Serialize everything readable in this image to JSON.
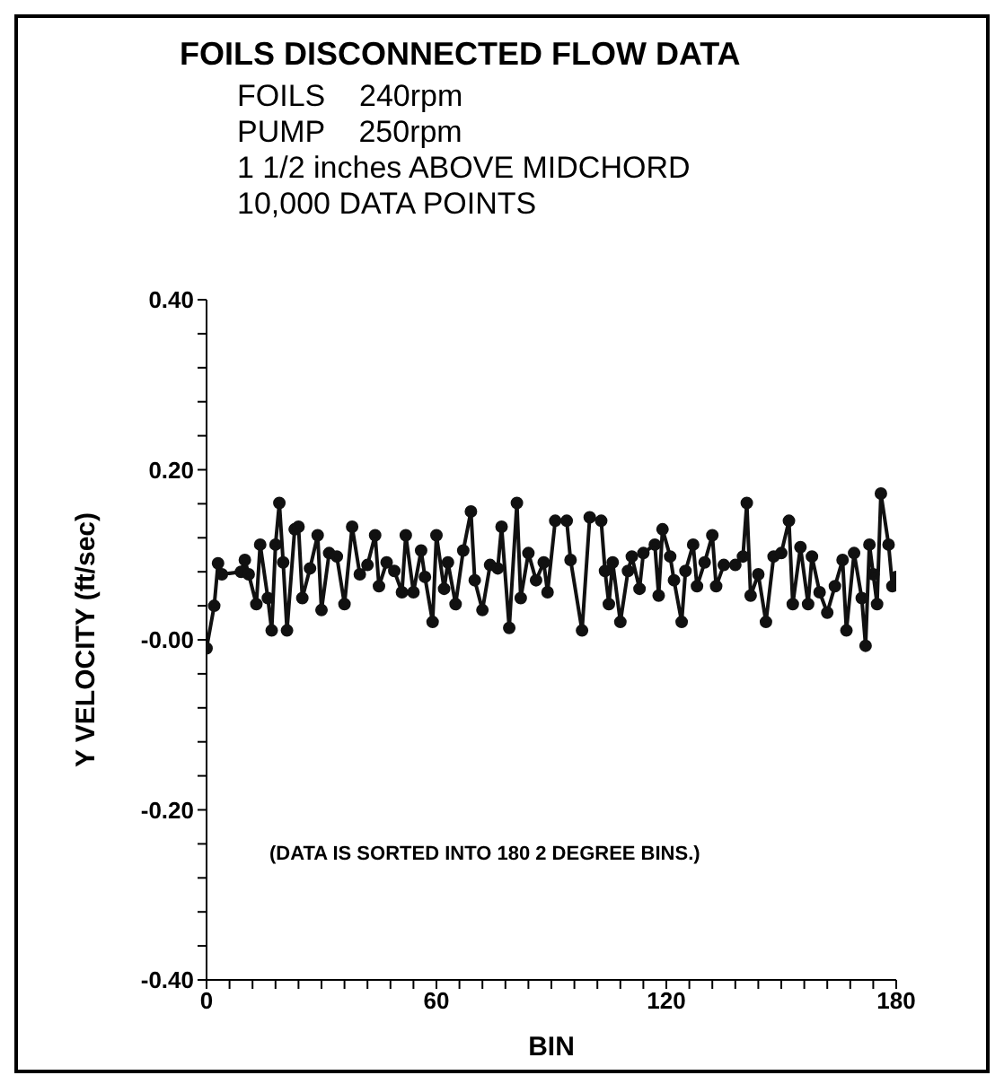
{
  "chart_data": {
    "type": "line",
    "title": "FOILS DISCONNECTED FLOW DATA",
    "subtitle": "FOILS    240rpm\nPUMP    250rpm\n1 1/2 inches ABOVE MIDCHORD\n10,000 DATA POINTS",
    "xlabel": "BIN",
    "ylabel": "Y VELOCITY (ft/sec)",
    "annotations": [
      "(DATA IS SORTED INTO 180 2 DEGREE BINS.)"
    ],
    "x": [
      0,
      2,
      3,
      4,
      9,
      10,
      11,
      13,
      14,
      16,
      17,
      18,
      19,
      20,
      21,
      23,
      24,
      25,
      27,
      29,
      30,
      32,
      34,
      36,
      38,
      40,
      42,
      44,
      45,
      47,
      49,
      51,
      52,
      54,
      56,
      57,
      59,
      60,
      62,
      63,
      65,
      67,
      69,
      70,
      72,
      74,
      76,
      77,
      79,
      81,
      82,
      84,
      86,
      88,
      89,
      91,
      94,
      95,
      98,
      100,
      103,
      104,
      105,
      106,
      108,
      110,
      111,
      113,
      114,
      117,
      118,
      119,
      121,
      122,
      124,
      125,
      127,
      128,
      130,
      132,
      133,
      135,
      138,
      140,
      141,
      142,
      144,
      146,
      148,
      150,
      152,
      153,
      155,
      157,
      158,
      160,
      162,
      164,
      166,
      167,
      169,
      171,
      172,
      173,
      174,
      175,
      176,
      178,
      179,
      180
    ],
    "series": [
      {
        "color": "#111111",
        "values": [
          -0.01,
          0.04,
          0.09,
          0.077,
          0.08,
          0.094,
          0.077,
          0.042,
          0.112,
          0.049,
          0.011,
          0.112,
          0.161,
          0.091,
          0.011,
          0.13,
          0.133,
          0.049,
          0.084,
          0.123,
          0.035,
          0.102,
          0.098,
          0.042,
          0.133,
          0.077,
          0.088,
          0.123,
          0.063,
          0.091,
          0.081,
          0.056,
          0.123,
          0.056,
          0.105,
          0.074,
          0.021,
          0.123,
          0.06,
          0.091,
          0.042,
          0.105,
          0.151,
          0.07,
          0.035,
          0.088,
          0.084,
          0.133,
          0.014,
          0.161,
          0.049,
          0.102,
          0.07,
          0.091,
          0.056,
          0.14,
          0.14,
          0.094,
          0.011,
          0.144,
          0.14,
          0.081,
          0.042,
          0.091,
          0.021,
          0.081,
          0.098,
          0.06,
          0.102,
          0.112,
          0.052,
          0.13,
          0.098,
          0.07,
          0.021,
          0.081,
          0.112,
          0.063,
          0.091,
          0.123,
          0.063,
          0.088,
          0.088,
          0.098,
          0.161,
          0.052,
          0.077,
          0.021,
          0.098,
          0.102,
          0.14,
          0.042,
          0.109,
          0.042,
          0.098,
          0.056,
          0.032,
          0.063,
          0.094,
          0.011,
          0.102,
          0.049,
          -0.007,
          0.112,
          0.077,
          0.042,
          0.172,
          0.112,
          0.063,
          0.074
        ]
      }
    ],
    "xlim": [
      0,
      180
    ],
    "xticks": [
      0,
      {
        "value": 6,
        "label": null
      },
      {
        "value": 12,
        "label": null
      },
      {
        "value": 18,
        "label": null
      },
      {
        "value": 24,
        "label": null
      },
      {
        "value": 30,
        "label": null
      },
      {
        "value": 36,
        "label": null
      },
      {
        "value": 42,
        "label": null
      },
      {
        "value": 48,
        "label": null
      },
      {
        "value": 54,
        "label": null
      },
      60,
      {
        "value": 66,
        "label": null
      },
      {
        "value": 72,
        "label": null
      },
      {
        "value": 78,
        "label": null
      },
      {
        "value": 84,
        "label": null
      },
      {
        "value": 90,
        "label": null
      },
      {
        "value": 96,
        "label": null
      },
      {
        "value": 102,
        "label": null
      },
      {
        "value": 108,
        "label": null
      },
      {
        "value": 114,
        "label": null
      },
      120,
      {
        "value": 126,
        "label": null
      },
      {
        "value": 132,
        "label": null
      },
      {
        "value": 138,
        "label": null
      },
      {
        "value": 144,
        "label": null
      },
      {
        "value": 150,
        "label": null
      },
      {
        "value": 156,
        "label": null
      },
      {
        "value": 162,
        "label": null
      },
      {
        "value": 168,
        "label": null
      },
      {
        "value": 174,
        "label": null
      },
      180
    ],
    "ylim": [
      -0.4,
      0.4
    ],
    "yticks": [
      {
        "value": -0.4,
        "label": "-0.40"
      },
      {
        "value": -0.36,
        "label": null
      },
      {
        "value": -0.32,
        "label": null
      },
      {
        "value": -0.28,
        "label": null
      },
      {
        "value": -0.24,
        "label": null
      },
      {
        "value": -0.2,
        "label": "-0.20"
      },
      {
        "value": -0.16,
        "label": null
      },
      {
        "value": -0.12,
        "label": null
      },
      {
        "value": -0.08,
        "label": null
      },
      {
        "value": -0.04,
        "label": null
      },
      {
        "value": 0,
        "label": "-0.00"
      },
      {
        "value": 0.04,
        "label": null
      },
      {
        "value": 0.08,
        "label": null
      },
      {
        "value": 0.12,
        "label": null
      },
      {
        "value": 0.16,
        "label": null
      },
      {
        "value": 0.2,
        "label": "0.20"
      },
      {
        "value": 0.24,
        "label": null
      },
      {
        "value": 0.28,
        "label": null
      },
      {
        "value": 0.32,
        "label": null
      },
      {
        "value": 0.36,
        "label": null
      },
      {
        "value": 0.4,
        "label": "0.40"
      }
    ],
    "grid": false,
    "legend": false,
    "marker": "circle",
    "line_style": "solid"
  }
}
